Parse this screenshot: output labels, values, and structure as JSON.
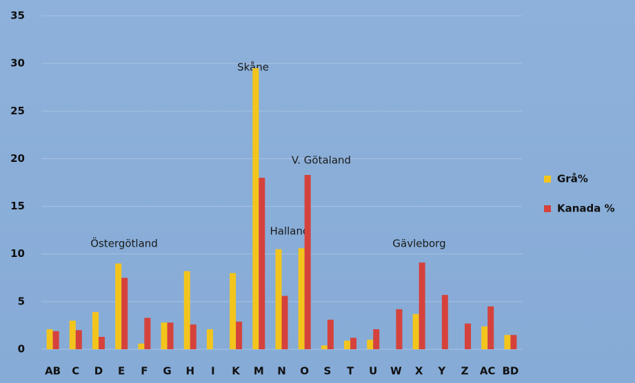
{
  "chart_data": {
    "type": "bar",
    "categories": [
      "AB",
      "C",
      "D",
      "E",
      "F",
      "G",
      "H",
      "I",
      "K",
      "M",
      "N",
      "O",
      "S",
      "T",
      "U",
      "W",
      "X",
      "Y",
      "Z",
      "AC",
      "BD"
    ],
    "series": [
      {
        "name": "Grå%",
        "color": "#f3c51c",
        "values": [
          2.1,
          3.0,
          3.9,
          9.0,
          0.6,
          2.8,
          8.2,
          2.1,
          8.0,
          29.5,
          10.5,
          10.6,
          0.4,
          0.9,
          1.0,
          0,
          3.7,
          0,
          0,
          2.4,
          1.5
        ]
      },
      {
        "name": "Kanada %",
        "color": "#d5423c",
        "values": [
          1.9,
          2.0,
          1.3,
          7.5,
          3.3,
          2.8,
          2.6,
          0,
          2.9,
          18.0,
          5.6,
          18.3,
          3.1,
          1.2,
          2.1,
          4.2,
          9.1,
          5.7,
          2.7,
          4.5,
          1.5
        ]
      }
    ],
    "annotations": [
      "Skåne",
      "V. Götaland",
      "Halland",
      "Östergötland",
      "Gävleborg"
    ],
    "ylim": [
      0,
      35
    ],
    "yticks": [
      0,
      5,
      10,
      15,
      20,
      25,
      30,
      35
    ],
    "grid": true,
    "legend": "right"
  }
}
